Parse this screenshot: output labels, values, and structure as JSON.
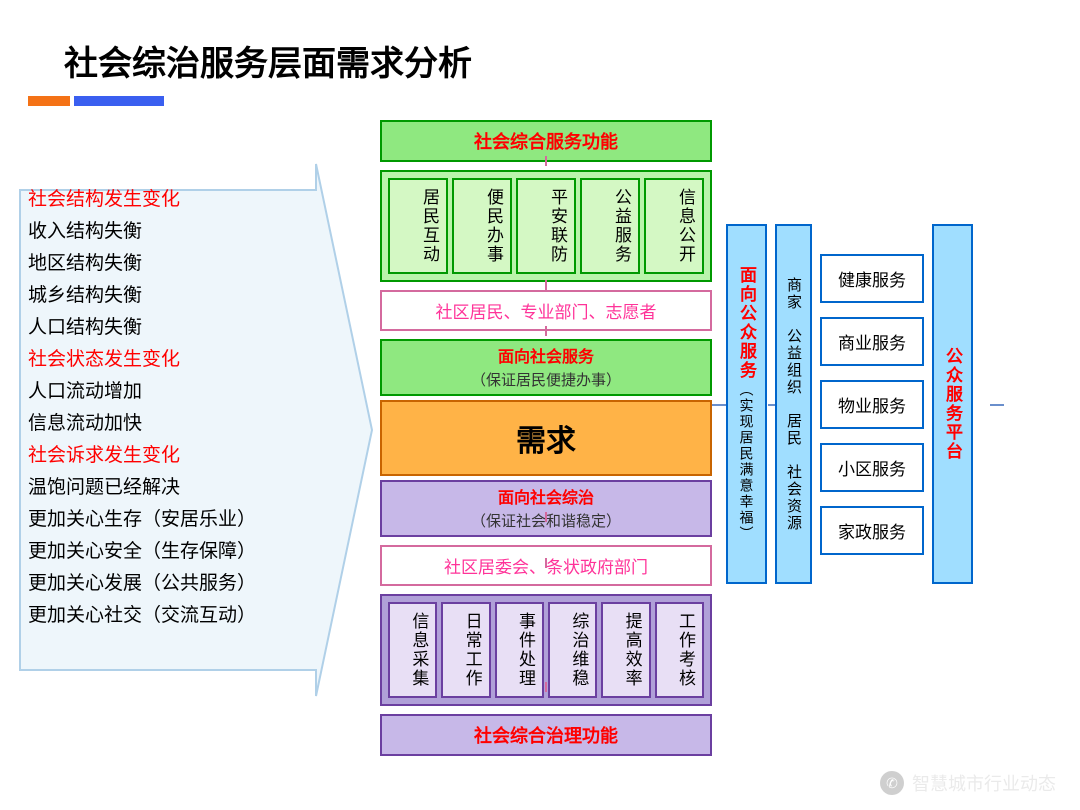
{
  "title": "社会综治服务层面需求分析",
  "left_items": [
    {
      "t": "社会结构发生变化",
      "hl": true
    },
    {
      "t": "收入结构失衡",
      "hl": false
    },
    {
      "t": "地区结构失衡",
      "hl": false
    },
    {
      "t": "城乡结构失衡",
      "hl": false
    },
    {
      "t": "人口结构失衡",
      "hl": false
    },
    {
      "t": "社会状态发生变化",
      "hl": true
    },
    {
      "t": "人口流动增加",
      "hl": false
    },
    {
      "t": "信息流动加快",
      "hl": false
    },
    {
      "t": "社会诉求发生变化",
      "hl": true
    },
    {
      "t": "温饱问题已经解决",
      "hl": false
    },
    {
      "t": "更加关心生存（安居乐业）",
      "hl": false
    },
    {
      "t": "更加关心安全（生存保障）",
      "hl": false
    },
    {
      "t": "更加关心发展（公共服务）",
      "hl": false
    },
    {
      "t": "更加关心社交（交流互动）",
      "hl": false
    }
  ],
  "center": {
    "top_hdr": "社会综合服务功能",
    "top_cells": [
      "居民互动",
      "便民办事",
      "平安联防",
      "公益服务",
      "信息公开"
    ],
    "top_pink": "社区居民、专业部门、志愿者",
    "svc_hdr": "面向社会服务",
    "svc_sub": "（保证居民便捷办事）",
    "demand": "需求",
    "gov_hdr": "面向社会综治",
    "gov_sub": "（保证社会和谐稳定）",
    "bot_pink": "社区居委会、条状政府部门",
    "bot_cells": [
      "信息采集",
      "日常工作",
      "事件处理",
      "综治维稳",
      "提高效率",
      "工作考核"
    ],
    "bot_hdr": "社会综合治理功能"
  },
  "right": {
    "bar1_a": "面向公众服务",
    "bar1_b": "（实现居民满意幸福）",
    "bar2": "商家　公益组织　居民　社会资源",
    "services": [
      "健康服务",
      "商业服务",
      "物业服务",
      "小区服务",
      "家政服务"
    ],
    "platform": "公众服务平台"
  },
  "watermark": "智慧城市行业动态",
  "colors": {
    "green_border": "#009900",
    "green_fill": "#8fe880",
    "green_light": "#baf4ab",
    "purple_border": "#6b3fa0",
    "purple_fill": "#c7b8e8",
    "pink_border": "#d46a9e",
    "orange_fill": "#ffb347",
    "blue_border": "#0066cc",
    "blue_fill": "#a0deff",
    "red_text": "#ff0000",
    "pink_text": "#ff3399",
    "arrow_fill": "#eef6fb",
    "arrow_stroke": "#b0d0e8"
  }
}
